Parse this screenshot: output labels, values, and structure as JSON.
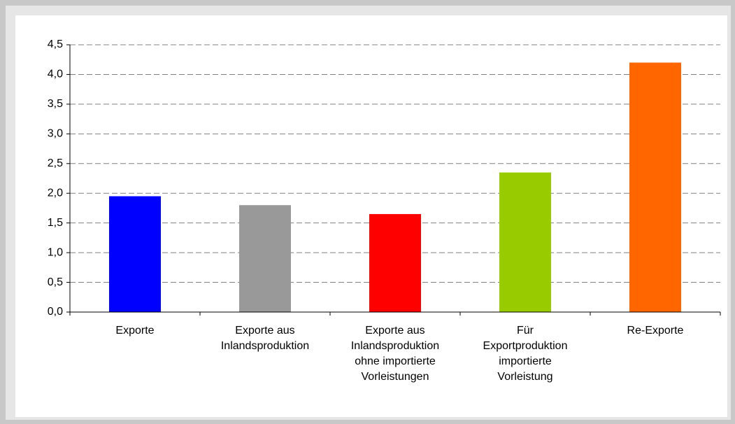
{
  "chart_data": {
    "type": "bar",
    "categories": [
      "Exporte",
      "Exporte aus\nInlandsproduktion",
      "Exporte aus\nInlandsproduktion\nohne importierte\nVorleistungen",
      "Für\nExportproduktion\nimportierte\nVorleistung",
      "Re-Exporte"
    ],
    "values": [
      1.95,
      1.8,
      1.65,
      2.35,
      4.2
    ],
    "colors": [
      "#0000ff",
      "#999999",
      "#ff0000",
      "#99cc00",
      "#ff6600"
    ],
    "ylim": [
      0,
      4.5
    ],
    "yticks": [
      {
        "value": 0,
        "label": "0,0"
      },
      {
        "value": 0.5,
        "label": "0,5"
      },
      {
        "value": 1,
        "label": "1,0"
      },
      {
        "value": 1.5,
        "label": "1,5"
      },
      {
        "value": 2,
        "label": "2,0"
      },
      {
        "value": 2.5,
        "label": "2,5"
      },
      {
        "value": 3,
        "label": "3,0"
      },
      {
        "value": 3.5,
        "label": "3,5"
      },
      {
        "value": 4,
        "label": "4,0"
      },
      {
        "value": 4.5,
        "label": "4,5"
      }
    ],
    "grid": true
  }
}
